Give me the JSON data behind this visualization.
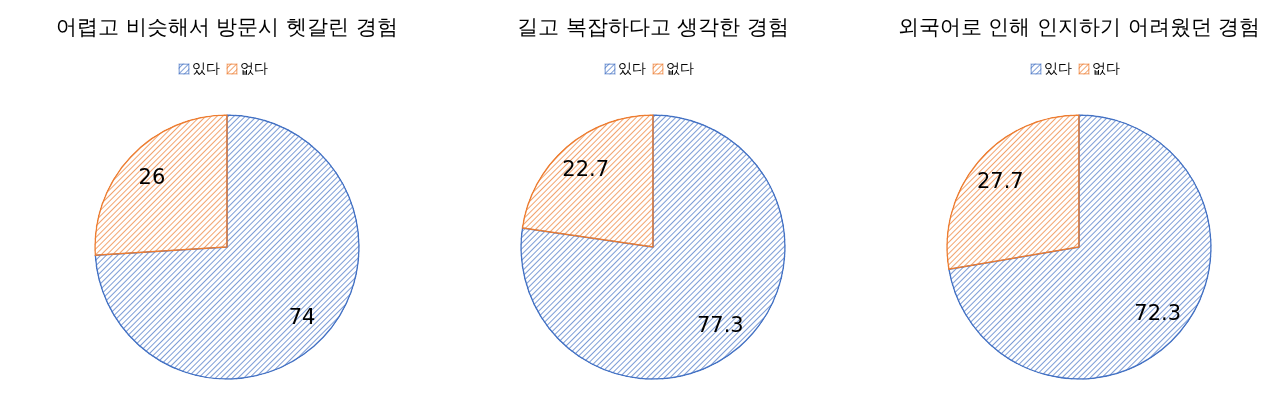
{
  "chart_data": [
    {
      "type": "pie",
      "title": "어렵고 비슷해서 방문시 헷갈린 경험",
      "categories": [
        "있다",
        "없다"
      ],
      "values": [
        74,
        26
      ],
      "colors": [
        "#4472c4",
        "#ed7d31"
      ],
      "data_labels": true,
      "legend": "top"
    },
    {
      "type": "pie",
      "title": "길고 복잡하다고 생각한 경험",
      "categories": [
        "있다",
        "없다"
      ],
      "values": [
        77.3,
        22.7
      ],
      "colors": [
        "#4472c4",
        "#ed7d31"
      ],
      "data_labels": true,
      "legend": "top"
    },
    {
      "type": "pie",
      "title": "외국어로 인해 인지하기 어려웠던 경험",
      "categories": [
        "있다",
        "없다"
      ],
      "values": [
        72.3,
        27.7
      ],
      "colors": [
        "#4472c4",
        "#ed7d31"
      ],
      "data_labels": true,
      "legend": "top"
    }
  ]
}
